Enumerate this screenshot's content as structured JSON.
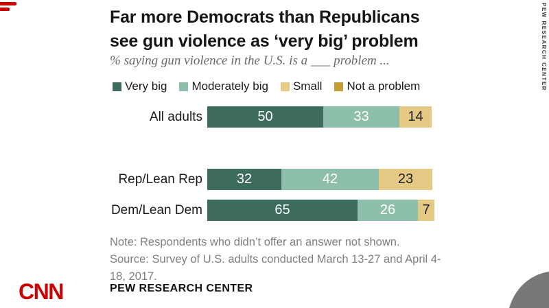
{
  "branding": {
    "cnn_logo_text": "CNN",
    "vertical_attribution": "PEW RESEARCH CENTER",
    "accent_red": "#cc0000",
    "swoosh_gray": "#787878"
  },
  "header": {
    "title_line1": "Far more Democrats than Republicans",
    "title_line2": "see gun violence as ‘very big’ problem",
    "subtitle": "% saying gun violence in the U.S. is a ___ problem ..."
  },
  "chart_data": {
    "type": "bar",
    "stacked": true,
    "horizontal": true,
    "title": "Far more Democrats than Republicans see gun violence as ‘very big’ problem",
    "subtitle": "% saying gun violence in the U.S. is a ___ problem ...",
    "categories": [
      "All adults",
      "Rep/Lean Rep",
      "Dem/Lean Dem"
    ],
    "series": [
      {
        "name": "Very big",
        "color": "#3d6b5c",
        "value_label_color": "#ffffff",
        "values": [
          50,
          32,
          65
        ]
      },
      {
        "name": "Moderately big",
        "color": "#8ebfaa",
        "value_label_color": "#ffffff",
        "values": [
          33,
          42,
          26
        ]
      },
      {
        "name": "Small",
        "color": "#e6c885",
        "value_label_color": "#222222",
        "values": [
          14,
          23,
          7
        ]
      }
    ],
    "legend": [
      {
        "label": "Very big",
        "color": "#3d6b5c"
      },
      {
        "label": "Moderately big",
        "color": "#8ebfaa"
      },
      {
        "label": "Small",
        "color": "#e8ca87"
      },
      {
        "label": "Not a problem",
        "color": "#c49d36"
      }
    ],
    "xlim": [
      0,
      100
    ],
    "grid": false,
    "legend_position": "top",
    "value_labels_shown": true
  },
  "footer": {
    "note": "Note: Respondents who didn’t offer an answer not shown.",
    "source_line1": "Source: Survey of U.S. adults conducted March 13-27 and April 4-",
    "source_line2": "18, 2017.",
    "brand": "PEW RESEARCH CENTER"
  }
}
